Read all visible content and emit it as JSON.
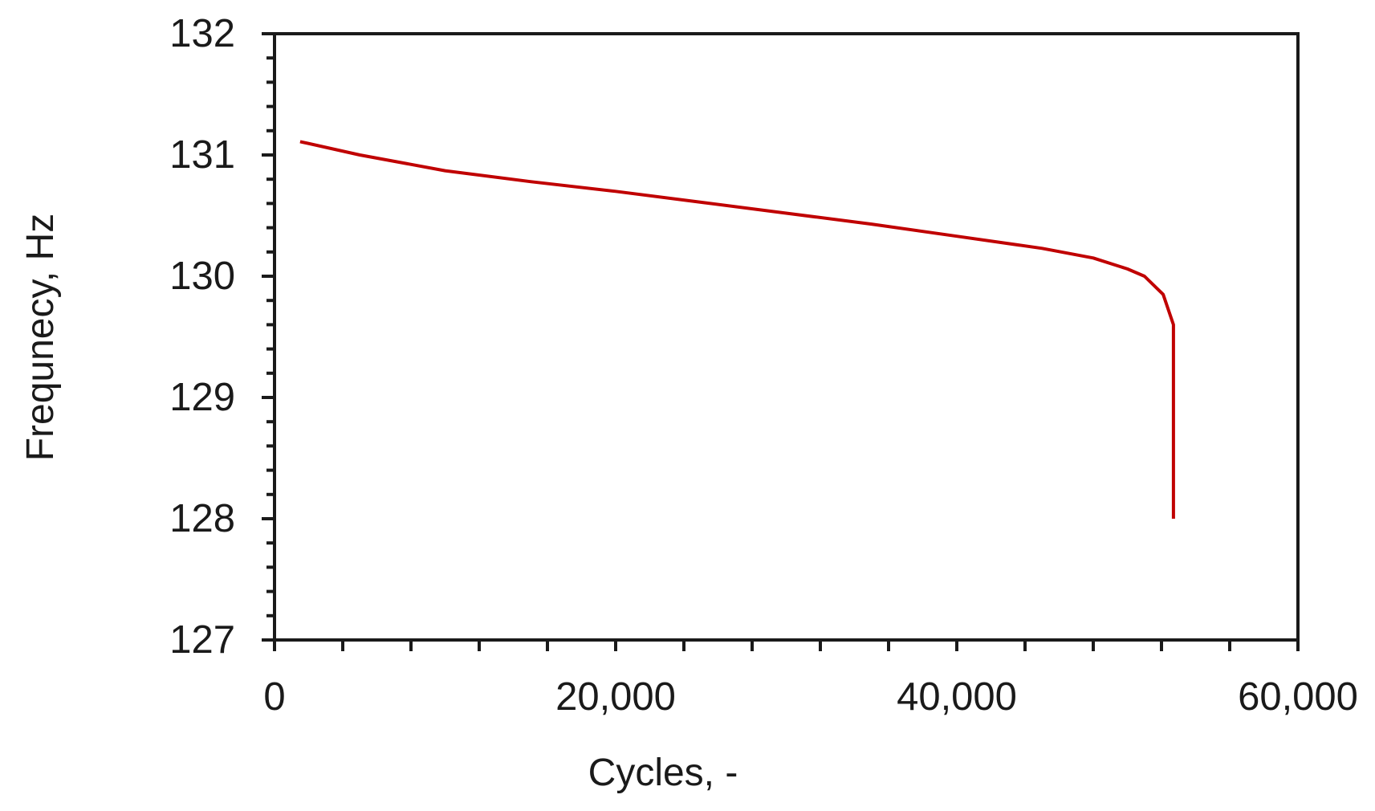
{
  "chart_data": {
    "type": "line",
    "title": "",
    "xlabel": "Cycles, -",
    "ylabel": "Frequnecy, Hz",
    "xlim": [
      0,
      60000
    ],
    "ylim": [
      127,
      132
    ],
    "x_ticks": [
      0,
      20000,
      40000,
      60000
    ],
    "x_tick_labels": [
      "0",
      "20,000",
      "40,000",
      "60,000"
    ],
    "x_minor_step": 4000,
    "y_ticks": [
      127,
      128,
      129,
      130,
      131,
      132
    ],
    "y_tick_labels": [
      "127",
      "128",
      "129",
      "130",
      "131",
      "132"
    ],
    "y_minor_step": 0.2,
    "grid": false,
    "legend": "none",
    "series": [
      {
        "color": "#c00000",
        "x": [
          1500,
          5000,
          10000,
          15000,
          20000,
          25000,
          30000,
          35000,
          40000,
          45000,
          48000,
          50000,
          51000,
          52100,
          52700,
          52700
        ],
        "y": [
          131.11,
          131.0,
          130.87,
          130.78,
          130.7,
          130.61,
          130.52,
          130.43,
          130.33,
          130.23,
          130.15,
          130.06,
          130.0,
          129.85,
          129.6,
          128.0
        ]
      }
    ]
  }
}
